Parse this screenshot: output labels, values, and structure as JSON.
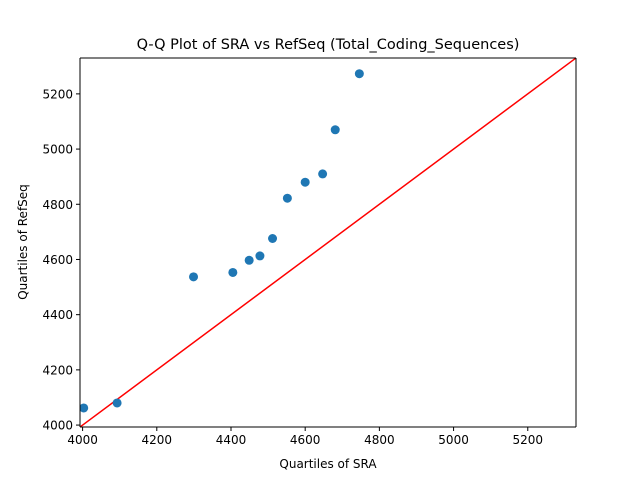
{
  "chart_data": {
    "type": "scatter",
    "title": "Q-Q Plot of SRA vs RefSeq (Total_Coding_Sequences)",
    "xlabel": "Quartiles of SRA",
    "ylabel": "Quartiles of RefSeq",
    "xlim": [
      3993,
      5330
    ],
    "ylim": [
      3993,
      5330
    ],
    "xticks": [
      4000,
      4200,
      4400,
      4600,
      4800,
      5000,
      5200
    ],
    "yticks": [
      4000,
      4200,
      4400,
      4600,
      4800,
      5000,
      5200
    ],
    "grid": false,
    "series": [
      {
        "marker_color": "#1f77b4",
        "points": [
          {
            "x": 4003,
            "y": 4062
          },
          {
            "x": 4093,
            "y": 4080
          },
          {
            "x": 4299,
            "y": 4537
          },
          {
            "x": 4405,
            "y": 4553
          },
          {
            "x": 4449,
            "y": 4597
          },
          {
            "x": 4478,
            "y": 4613
          },
          {
            "x": 4512,
            "y": 4676
          },
          {
            "x": 4552,
            "y": 4822
          },
          {
            "x": 4600,
            "y": 4880
          },
          {
            "x": 4647,
            "y": 4910
          },
          {
            "x": 4681,
            "y": 5070
          },
          {
            "x": 4746,
            "y": 5273
          }
        ]
      }
    ],
    "reference_line": {
      "color": "#ff0000",
      "from": [
        3993,
        3993
      ],
      "to": [
        5330,
        5330
      ]
    }
  }
}
